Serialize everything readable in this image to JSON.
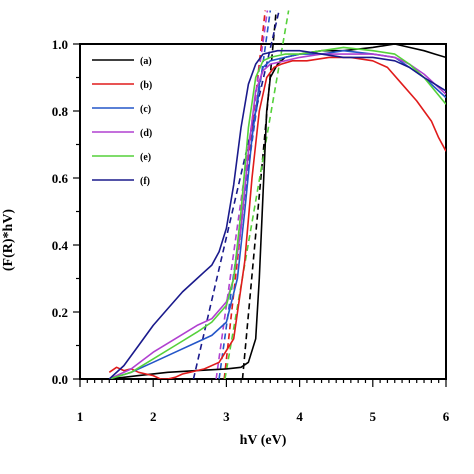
{
  "chart_data": {
    "type": "line",
    "xlabel": "hV (eV)",
    "ylabel": "(F(R)*hV)",
    "xlim": [
      1,
      6
    ],
    "ylim": [
      0,
      1.0
    ],
    "x_ticks": [
      "1",
      "2",
      "3",
      "4",
      "5",
      "6"
    ],
    "y_ticks": [
      "0.0",
      "0.2",
      "0.4",
      "0.6",
      "0.8",
      "1.0"
    ],
    "legend_position": "top-left",
    "series": [
      {
        "name": "(a)",
        "color": "#000000",
        "x": [
          1.4,
          1.8,
          2.2,
          2.6,
          3.0,
          3.2,
          3.3,
          3.4,
          3.45,
          3.5,
          3.55,
          3.6,
          3.7,
          3.8,
          4.0,
          4.3,
          4.6,
          5.0,
          5.3,
          5.5,
          5.7,
          5.85,
          6.0
        ],
        "y": [
          0.0,
          0.01,
          0.02,
          0.025,
          0.03,
          0.035,
          0.05,
          0.12,
          0.3,
          0.55,
          0.8,
          0.9,
          0.94,
          0.96,
          0.97,
          0.98,
          0.98,
          0.99,
          1.0,
          0.99,
          0.98,
          0.97,
          0.96
        ]
      },
      {
        "name": "(b)",
        "color": "#e01b1b",
        "x": [
          1.4,
          1.5,
          1.6,
          1.7,
          1.8,
          1.9,
          2.0,
          2.1,
          2.2,
          2.3,
          2.4,
          2.5,
          2.7,
          2.9,
          3.1,
          3.25,
          3.35,
          3.45,
          3.55,
          3.65,
          3.75,
          3.9,
          4.1,
          4.4,
          4.7,
          5.0,
          5.2,
          5.4,
          5.6,
          5.8,
          5.9,
          6.0
        ],
        "y": [
          0.02,
          0.035,
          0.025,
          0.03,
          0.02,
          0.015,
          0.01,
          0.0,
          0.0,
          0.005,
          0.015,
          0.02,
          0.03,
          0.05,
          0.12,
          0.35,
          0.6,
          0.8,
          0.9,
          0.93,
          0.94,
          0.95,
          0.95,
          0.96,
          0.96,
          0.95,
          0.93,
          0.88,
          0.83,
          0.77,
          0.72,
          0.68
        ]
      },
      {
        "name": "(c)",
        "color": "#2456c8",
        "x": [
          1.4,
          1.7,
          2.0,
          2.3,
          2.6,
          2.8,
          3.0,
          3.15,
          3.25,
          3.35,
          3.45,
          3.5,
          3.6,
          3.8,
          4.0,
          4.3,
          4.6,
          5.0,
          5.3,
          5.5,
          5.7,
          5.85,
          6.0
        ],
        "y": [
          0.0,
          0.02,
          0.05,
          0.08,
          0.11,
          0.13,
          0.17,
          0.3,
          0.5,
          0.72,
          0.88,
          0.93,
          0.95,
          0.96,
          0.97,
          0.97,
          0.98,
          0.97,
          0.96,
          0.93,
          0.9,
          0.87,
          0.84
        ]
      },
      {
        "name": "(d)",
        "color": "#b040d0",
        "x": [
          1.4,
          1.7,
          2.0,
          2.3,
          2.6,
          2.8,
          3.0,
          3.1,
          3.2,
          3.3,
          3.4,
          3.5,
          3.6,
          3.8,
          4.0,
          4.3,
          4.6,
          5.0,
          5.3,
          5.5,
          5.7,
          5.85,
          6.0
        ],
        "y": [
          0.0,
          0.03,
          0.08,
          0.12,
          0.16,
          0.18,
          0.23,
          0.3,
          0.45,
          0.68,
          0.86,
          0.92,
          0.94,
          0.95,
          0.96,
          0.97,
          0.97,
          0.97,
          0.96,
          0.94,
          0.91,
          0.88,
          0.85
        ]
      },
      {
        "name": "(e)",
        "color": "#55d13a",
        "x": [
          1.4,
          1.7,
          2.0,
          2.3,
          2.6,
          2.8,
          3.0,
          3.1,
          3.2,
          3.3,
          3.4,
          3.5,
          3.6,
          3.8,
          4.0,
          4.3,
          4.6,
          5.0,
          5.3,
          5.5,
          5.7,
          5.85,
          6.0
        ],
        "y": [
          0.0,
          0.02,
          0.06,
          0.1,
          0.14,
          0.17,
          0.22,
          0.3,
          0.5,
          0.75,
          0.9,
          0.95,
          0.96,
          0.97,
          0.97,
          0.98,
          0.99,
          0.98,
          0.97,
          0.94,
          0.9,
          0.86,
          0.82
        ]
      },
      {
        "name": "(f)",
        "color": "#1a1a8c",
        "x": [
          1.4,
          1.6,
          1.8,
          2.0,
          2.2,
          2.4,
          2.6,
          2.7,
          2.8,
          2.9,
          3.0,
          3.1,
          3.2,
          3.3,
          3.4,
          3.5,
          3.7,
          4.0,
          4.3,
          4.6,
          5.0,
          5.3,
          5.5,
          5.7,
          5.85,
          6.0
        ],
        "y": [
          0.0,
          0.04,
          0.1,
          0.16,
          0.21,
          0.26,
          0.3,
          0.32,
          0.34,
          0.38,
          0.45,
          0.58,
          0.75,
          0.88,
          0.94,
          0.97,
          0.98,
          0.98,
          0.97,
          0.96,
          0.96,
          0.95,
          0.93,
          0.9,
          0.88,
          0.86
        ]
      }
    ],
    "tangent_lines": [
      {
        "color": "#000000",
        "x": [
          3.22,
          3.68
        ],
        "y": [
          0.0,
          1.1
        ]
      },
      {
        "color": "#e01b1b",
        "x": [
          2.97,
          3.53
        ],
        "y": [
          0.0,
          1.1
        ]
      },
      {
        "color": "#2456c8",
        "x": [
          2.9,
          3.6
        ],
        "y": [
          0.0,
          1.1
        ]
      },
      {
        "color": "#b040d0",
        "x": [
          2.86,
          3.56
        ],
        "y": [
          0.0,
          1.1
        ]
      },
      {
        "color": "#55d13a",
        "x": [
          2.98,
          3.85
        ],
        "y": [
          0.0,
          1.1
        ]
      },
      {
        "color": "#1a1a8c",
        "x": [
          2.55,
          3.72
        ],
        "y": [
          0.0,
          1.1
        ]
      }
    ]
  }
}
